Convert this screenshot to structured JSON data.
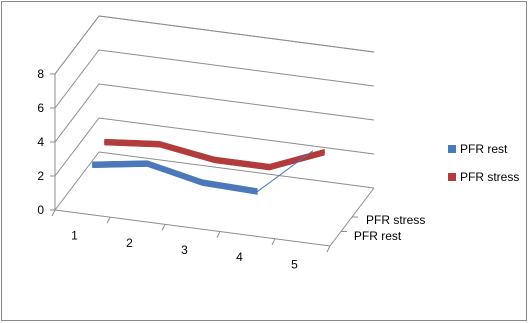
{
  "chart_data": {
    "type": "line",
    "variant": "3d-line",
    "title": "",
    "xlabel": "",
    "ylabel": "",
    "categories": [
      "1",
      "2",
      "3",
      "4",
      "5"
    ],
    "ylim": [
      0,
      8
    ],
    "yticks": [
      "0",
      "2",
      "4",
      "6",
      "8"
    ],
    "grid": true,
    "legend_position": "right",
    "depth_labels": [
      "PFR stress",
      "PFR rest"
    ],
    "series": [
      {
        "name": "PFR rest",
        "color": "#4a78b8",
        "values": [
          2.1,
          2.6,
          1.9,
          1.8,
          4.6
        ]
      },
      {
        "name": "PFR stress",
        "color": "#b23b3b",
        "values": [
          2.5,
          2.8,
          2.3,
          2.3,
          3.6
        ]
      }
    ]
  }
}
